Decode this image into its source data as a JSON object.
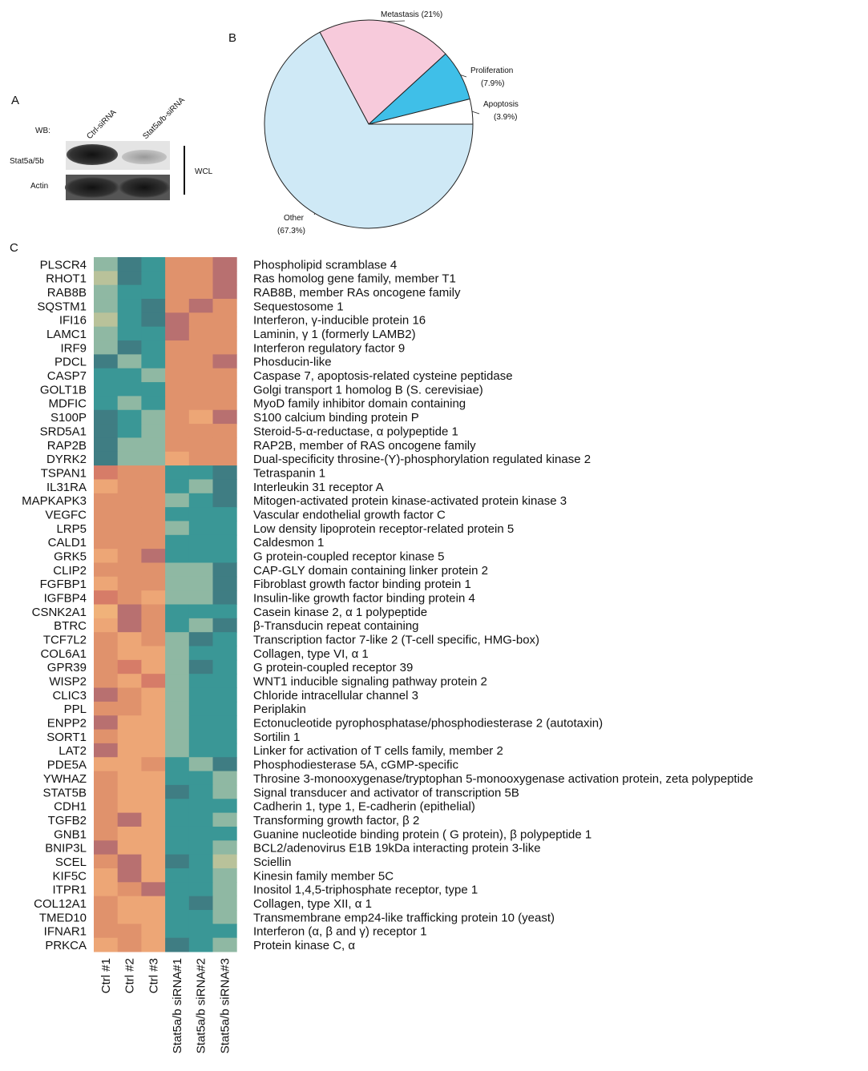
{
  "panel_labels": [
    "A",
    "B",
    "C"
  ],
  "western_blot": {
    "wb_label": "WB:",
    "lanes": [
      "Ctrl-siRNA",
      "Stat5a/b-siRNA"
    ],
    "bands": [
      "Stat5a/5b",
      "Actin"
    ],
    "bracket_label": "WCL"
  },
  "chart_data": {
    "type": "pie",
    "categories": [
      "Apoptosis",
      "Proliferation",
      "Metastasis",
      "Other"
    ],
    "values": [
      3.9,
      7.9,
      21,
      67.3
    ],
    "value_labels": [
      "(3.9%)",
      "(7.9%)",
      "(21%)",
      "(67.3%)"
    ],
    "colors": [
      "#ffffff",
      "#3fbfe8",
      "#f7cadb",
      "#cfe9f6"
    ]
  },
  "heatmap": {
    "columns": [
      "Ctrl #1",
      "Ctrl #2",
      "Ctrl #3",
      "Stat5a/b siRNA#1",
      "Stat5a/b siRNA#2",
      "Stat5a/b siRNA#3"
    ],
    "rows": [
      {
        "gene": "PLSCR4",
        "description": "Phospholipid scramblase 4",
        "colors": [
          "#8fb8a3",
          "#3f7d83",
          "#3a9796",
          "#e0926c",
          "#e0926c",
          "#b87070"
        ]
      },
      {
        "gene": "RHOT1",
        "description": "Ras homolog gene family, member T1",
        "colors": [
          "#b9c29a",
          "#3f7d83",
          "#3a9796",
          "#e0926c",
          "#e0926c",
          "#b87070"
        ]
      },
      {
        "gene": "RAB8B",
        "description": "RAB8B, member RAs oncogene family",
        "colors": [
          "#8fb8a3",
          "#3a9796",
          "#3a9796",
          "#e0926c",
          "#e0926c",
          "#b87070"
        ]
      },
      {
        "gene": "SQSTM1",
        "description": "Sequestosome 1",
        "colors": [
          "#8fb8a3",
          "#3a9796",
          "#3f7d83",
          "#e0926c",
          "#b87070",
          "#e0926c"
        ]
      },
      {
        "gene": "IFI16",
        "description": "Interferon, γ-inducible protein 16",
        "colors": [
          "#b9c29a",
          "#3a9796",
          "#3f7d83",
          "#b87070",
          "#e0926c",
          "#e0926c"
        ]
      },
      {
        "gene": "LAMC1",
        "description": "Laminin, γ 1 (formerly LAMB2)",
        "colors": [
          "#8fb8a3",
          "#3a9796",
          "#3a9796",
          "#b87070",
          "#e0926c",
          "#e0926c"
        ]
      },
      {
        "gene": "IRF9",
        "description": "Interferon regulatory factor 9",
        "colors": [
          "#8fb8a3",
          "#3f7d83",
          "#3a9796",
          "#e0926c",
          "#e0926c",
          "#e0926c"
        ]
      },
      {
        "gene": "PDCL",
        "description": "Phosducin-like",
        "colors": [
          "#3f7d83",
          "#8fb8a3",
          "#3a9796",
          "#e0926c",
          "#e0926c",
          "#b87070"
        ]
      },
      {
        "gene": "CASP7",
        "description": "Caspase 7, apoptosis-related cysteine peptidase",
        "colors": [
          "#3a9796",
          "#3a9796",
          "#8fb8a3",
          "#e0926c",
          "#e0926c",
          "#e0926c"
        ]
      },
      {
        "gene": "GOLT1B",
        "description": "Golgi transport 1 homolog B (S. cerevisiae)",
        "colors": [
          "#3a9796",
          "#3a9796",
          "#3a9796",
          "#e0926c",
          "#e0926c",
          "#e0926c"
        ]
      },
      {
        "gene": "MDFIC",
        "description": "MyoD family inhibitor domain containing",
        "colors": [
          "#3a9796",
          "#8fb8a3",
          "#3a9796",
          "#e0926c",
          "#e0926c",
          "#e0926c"
        ]
      },
      {
        "gene": "S100P",
        "description": "S100 calcium binding protein P",
        "colors": [
          "#3f7d83",
          "#3a9796",
          "#8fb8a3",
          "#e0926c",
          "#eda676",
          "#b87070"
        ]
      },
      {
        "gene": "SRD5A1",
        "description": "Steroid-5-α-reductase, α polypeptide 1",
        "colors": [
          "#3f7d83",
          "#3a9796",
          "#8fb8a3",
          "#e0926c",
          "#e0926c",
          "#e0926c"
        ]
      },
      {
        "gene": "RAP2B",
        "description": "RAP2B, member of RAS oncogene family",
        "colors": [
          "#3f7d83",
          "#8fb8a3",
          "#8fb8a3",
          "#e0926c",
          "#e0926c",
          "#e0926c"
        ]
      },
      {
        "gene": "DYRK2",
        "description": "Dual-specificity throsine-(Y)-phosphorylation regulated kinase 2",
        "colors": [
          "#3f7d83",
          "#8fb8a3",
          "#8fb8a3",
          "#eda676",
          "#e0926c",
          "#e0926c"
        ]
      },
      {
        "gene": "TSPAN1",
        "description": "Tetraspanin 1",
        "colors": [
          "#d67c68",
          "#e0926c",
          "#e0926c",
          "#3a9796",
          "#3a9796",
          "#3f7d83"
        ]
      },
      {
        "gene": "IL31RA",
        "description": "Interleukin 31 receptor A",
        "colors": [
          "#eda676",
          "#e0926c",
          "#e0926c",
          "#3a9796",
          "#8fb8a3",
          "#3f7d83"
        ]
      },
      {
        "gene": "MAPKAPK3",
        "description": "Mitogen-activated protein kinase-activated protein kinase 3",
        "colors": [
          "#e0926c",
          "#e0926c",
          "#e0926c",
          "#8fb8a3",
          "#3a9796",
          "#3f7d83"
        ]
      },
      {
        "gene": "VEGFC",
        "description": "Vascular endothelial growth factor C",
        "colors": [
          "#e0926c",
          "#e0926c",
          "#e0926c",
          "#3a9796",
          "#3a9796",
          "#3a9796"
        ]
      },
      {
        "gene": "LRP5",
        "description": "Low density lipoprotein receptor-related protein 5",
        "colors": [
          "#e0926c",
          "#e0926c",
          "#e0926c",
          "#8fb8a3",
          "#3a9796",
          "#3a9796"
        ]
      },
      {
        "gene": "CALD1",
        "description": "Caldesmon 1",
        "colors": [
          "#e0926c",
          "#e0926c",
          "#e0926c",
          "#3a9796",
          "#3a9796",
          "#3a9796"
        ]
      },
      {
        "gene": "GRK5",
        "description": "G protein-coupled receptor kinase 5",
        "colors": [
          "#eda676",
          "#e0926c",
          "#b87070",
          "#3a9796",
          "#3a9796",
          "#3a9796"
        ]
      },
      {
        "gene": "CLIP2",
        "description": "CAP-GLY domain containing linker protein 2",
        "colors": [
          "#e0926c",
          "#e0926c",
          "#e0926c",
          "#8fb8a3",
          "#8fb8a3",
          "#3f7d83"
        ]
      },
      {
        "gene": "FGFBP1",
        "description": "Fibroblast growth factor binding protein 1",
        "colors": [
          "#eda676",
          "#e0926c",
          "#e0926c",
          "#8fb8a3",
          "#8fb8a3",
          "#3f7d83"
        ]
      },
      {
        "gene": "IGFBP4",
        "description": "Insulin-like growth factor binding protein 4",
        "colors": [
          "#d67c68",
          "#e0926c",
          "#eda676",
          "#8fb8a3",
          "#8fb8a3",
          "#3f7d83"
        ]
      },
      {
        "gene": "CSNK2A1",
        "description": "Casein kinase 2, α 1 polypeptide",
        "colors": [
          "#f0b27a",
          "#b87070",
          "#e0926c",
          "#3a9796",
          "#3a9796",
          "#3a9796"
        ]
      },
      {
        "gene": "BTRC",
        "description": "β-Transducin repeat containing",
        "colors": [
          "#eda676",
          "#b87070",
          "#e0926c",
          "#3a9796",
          "#8fb8a3",
          "#3f7d83"
        ]
      },
      {
        "gene": "TCF7L2",
        "description": "Transcription factor 7-like 2 (T-cell specific, HMG-box)",
        "colors": [
          "#e0926c",
          "#eda676",
          "#e0926c",
          "#8fb8a3",
          "#3f7d83",
          "#3a9796"
        ]
      },
      {
        "gene": "COL6A1",
        "description": "Collagen, type VI, α 1",
        "colors": [
          "#e0926c",
          "#eda676",
          "#eda676",
          "#8fb8a3",
          "#3a9796",
          "#3a9796"
        ]
      },
      {
        "gene": "GPR39",
        "description": "G protein-coupled receptor 39",
        "colors": [
          "#e0926c",
          "#d67c68",
          "#eda676",
          "#8fb8a3",
          "#3f7d83",
          "#3a9796"
        ]
      },
      {
        "gene": "WISP2",
        "description": "WNT1 inducible signaling pathway protein 2",
        "colors": [
          "#e0926c",
          "#eda676",
          "#d67c68",
          "#8fb8a3",
          "#3a9796",
          "#3a9796"
        ]
      },
      {
        "gene": "CLIC3",
        "description": "Chloride intracellular channel 3",
        "colors": [
          "#b87070",
          "#e0926c",
          "#eda676",
          "#8fb8a3",
          "#3a9796",
          "#3a9796"
        ]
      },
      {
        "gene": "PPL",
        "description": "Periplakin",
        "colors": [
          "#e0926c",
          "#e0926c",
          "#eda676",
          "#8fb8a3",
          "#3a9796",
          "#3a9796"
        ]
      },
      {
        "gene": "ENPP2",
        "description": "Ectonucleotide pyrophosphatase/phosphodiesterase 2 (autotaxin)",
        "colors": [
          "#b87070",
          "#eda676",
          "#eda676",
          "#8fb8a3",
          "#3a9796",
          "#3a9796"
        ]
      },
      {
        "gene": "SORT1",
        "description": "Sortilin 1",
        "colors": [
          "#e0926c",
          "#eda676",
          "#eda676",
          "#8fb8a3",
          "#3a9796",
          "#3a9796"
        ]
      },
      {
        "gene": "LAT2",
        "description": "Linker for activation of T cells family, member 2",
        "colors": [
          "#b87070",
          "#eda676",
          "#eda676",
          "#8fb8a3",
          "#3a9796",
          "#3a9796"
        ]
      },
      {
        "gene": "PDE5A",
        "description": "Phosphodiesterase 5A, cGMP-specific",
        "colors": [
          "#eda676",
          "#eda676",
          "#e0926c",
          "#3a9796",
          "#8fb8a3",
          "#3f7d83"
        ]
      },
      {
        "gene": "YWHAZ",
        "description": "Throsine 3-monooxygenase/tryptophan 5-monooxygenase activation protein, zeta polypeptide",
        "colors": [
          "#e0926c",
          "#eda676",
          "#eda676",
          "#3a9796",
          "#3a9796",
          "#8fb8a3"
        ]
      },
      {
        "gene": "STAT5B",
        "description": "Signal transducer and activator of transcription 5B",
        "colors": [
          "#e0926c",
          "#eda676",
          "#eda676",
          "#3f7d83",
          "#3a9796",
          "#8fb8a3"
        ]
      },
      {
        "gene": "CDH1",
        "description": "Cadherin 1, type 1, E-cadherin (epithelial)",
        "colors": [
          "#e0926c",
          "#eda676",
          "#eda676",
          "#3a9796",
          "#3a9796",
          "#3a9796"
        ]
      },
      {
        "gene": "TGFB2",
        "description": "Transforming growth factor, β 2",
        "colors": [
          "#e0926c",
          "#b87070",
          "#eda676",
          "#3a9796",
          "#3a9796",
          "#8fb8a3"
        ]
      },
      {
        "gene": "GNB1",
        "description": "Guanine nucleotide binding protein ( G protein), β polypeptide 1",
        "colors": [
          "#e0926c",
          "#eda676",
          "#eda676",
          "#3a9796",
          "#3a9796",
          "#3a9796"
        ]
      },
      {
        "gene": "BNIP3L",
        "description": "BCL2/adenovirus E1B 19kDa interacting protein 3-like",
        "colors": [
          "#b87070",
          "#eda676",
          "#eda676",
          "#3a9796",
          "#3a9796",
          "#8fb8a3"
        ]
      },
      {
        "gene": "SCEL",
        "description": "Sciellin",
        "colors": [
          "#e0926c",
          "#b87070",
          "#eda676",
          "#3f7d83",
          "#3a9796",
          "#b9c29a"
        ]
      },
      {
        "gene": "KIF5C",
        "description": "Kinesin family member 5C",
        "colors": [
          "#eda676",
          "#b87070",
          "#eda676",
          "#3a9796",
          "#3a9796",
          "#8fb8a3"
        ]
      },
      {
        "gene": "ITPR1",
        "description": "Inositol 1,4,5-triphosphate receptor, type 1",
        "colors": [
          "#eda676",
          "#e0926c",
          "#b87070",
          "#3a9796",
          "#3a9796",
          "#8fb8a3"
        ]
      },
      {
        "gene": "COL12A1",
        "description": "Collagen, type XII, α 1",
        "colors": [
          "#e0926c",
          "#eda676",
          "#eda676",
          "#3a9796",
          "#3f7d83",
          "#8fb8a3"
        ]
      },
      {
        "gene": "TMED10",
        "description": "Transmembrane emp24-like trafficking protein 10 (yeast)",
        "colors": [
          "#e0926c",
          "#eda676",
          "#eda676",
          "#3a9796",
          "#3a9796",
          "#8fb8a3"
        ]
      },
      {
        "gene": "IFNAR1",
        "description": "Interferon (α, β and γ) receptor 1",
        "colors": [
          "#e0926c",
          "#e0926c",
          "#eda676",
          "#3a9796",
          "#3a9796",
          "#3a9796"
        ]
      },
      {
        "gene": "PRKCA",
        "description": "Protein kinase C, α",
        "colors": [
          "#eda676",
          "#e0926c",
          "#eda676",
          "#3f7d83",
          "#3a9796",
          "#8fb8a3"
        ]
      }
    ]
  }
}
